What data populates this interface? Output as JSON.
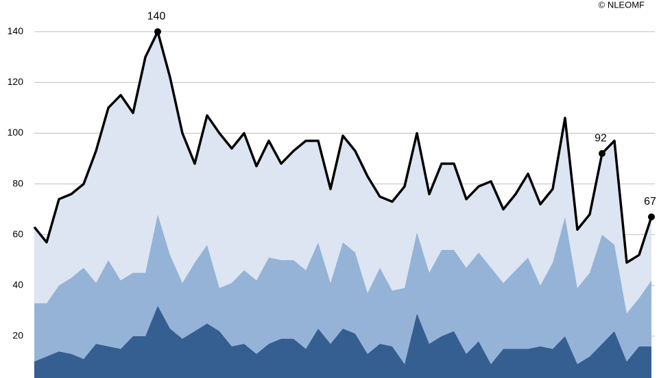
{
  "chart_data": {
    "type": "stacked-area-line",
    "annotation": "© NLEOMF",
    "ylim": [
      3.5,
      152.5
    ],
    "yticks": [
      20,
      40,
      60,
      80,
      100,
      120,
      140
    ],
    "grid": true,
    "series": [
      {
        "color": "#365f91",
        "values": [
          10,
          12,
          14,
          13,
          11,
          17,
          16,
          15,
          20,
          20,
          32,
          23,
          19,
          22,
          25,
          22,
          16,
          17,
          13,
          17,
          19,
          19,
          15,
          23,
          17,
          23,
          21,
          13,
          17,
          16,
          9,
          29,
          17,
          20,
          22,
          13,
          18,
          9,
          15,
          15,
          15,
          16,
          15,
          20,
          9,
          12,
          17,
          22,
          10,
          16,
          16
        ]
      },
      {
        "color": "#95b3d7",
        "values": [
          23,
          21,
          26,
          30,
          36,
          24,
          34,
          27,
          25,
          25,
          36,
          29,
          22,
          27,
          31,
          17,
          25,
          29,
          29,
          34,
          31,
          31,
          31,
          34,
          24,
          34,
          32,
          24,
          30,
          22,
          30,
          32,
          28,
          34,
          32,
          34,
          35,
          38,
          26,
          31,
          36,
          24,
          34,
          47,
          30,
          33,
          43,
          34,
          19,
          19,
          26
        ]
      },
      {
        "color": "#dce5f1",
        "values": [
          30,
          24,
          34,
          33,
          33,
          52,
          60,
          73,
          63,
          85,
          72,
          70,
          59,
          39,
          51,
          61,
          53,
          54,
          45,
          46,
          38,
          43,
          51,
          40,
          37,
          42,
          40,
          46,
          28,
          35,
          40,
          39,
          31,
          34,
          34,
          27,
          26,
          34,
          29,
          30,
          33,
          32,
          29,
          39,
          23,
          23,
          32,
          41,
          20,
          17,
          25
        ]
      }
    ],
    "line": {
      "color": "#000000",
      "labeled_points": [
        10,
        46,
        50
      ],
      "values": [
        63,
        57,
        74,
        76,
        80,
        93,
        110,
        115,
        108,
        130,
        140,
        122,
        100,
        88,
        107,
        100,
        94,
        100,
        87,
        97,
        88,
        93,
        97,
        97,
        78,
        99,
        93,
        83,
        75,
        73,
        79,
        100,
        76,
        88,
        88,
        74,
        79,
        81,
        70,
        76,
        84,
        72,
        78,
        106,
        62,
        68,
        92,
        97,
        49,
        52,
        67
      ]
    }
  }
}
